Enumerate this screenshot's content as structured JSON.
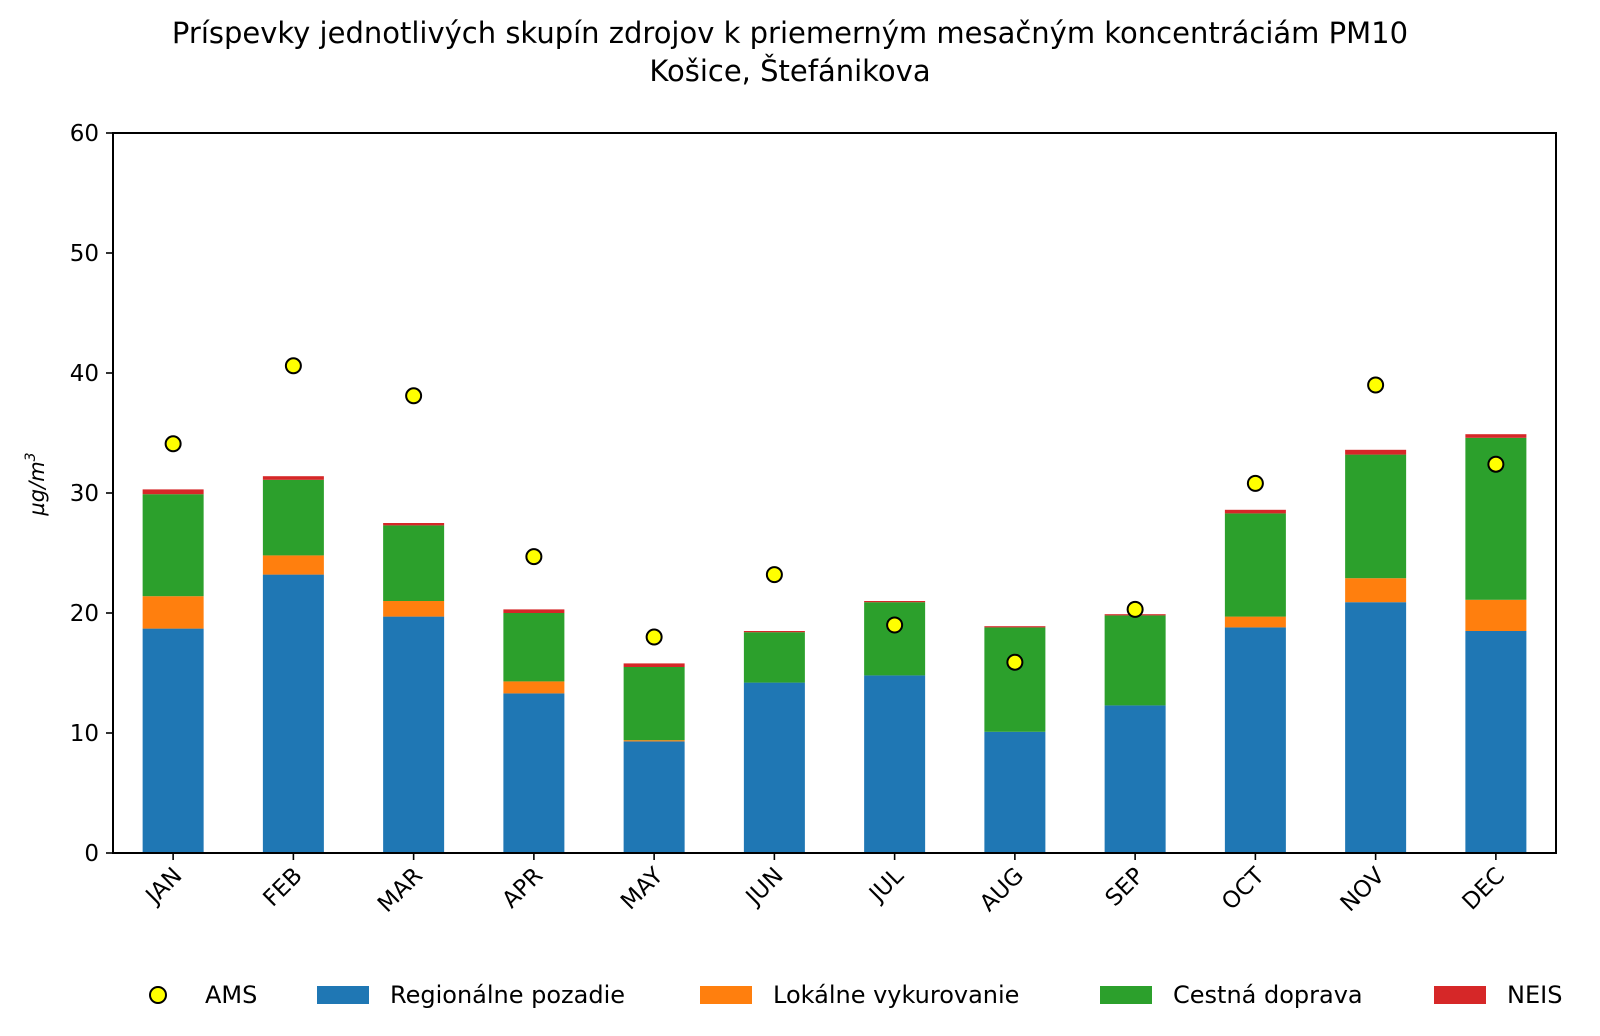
{
  "chart_data": {
    "type": "bar",
    "title": "Príspevky jednotlivých skupín zdrojov k priemerným mesačným koncentráciám PM10",
    "subtitle": "Košice, Štefánikova",
    "xlabel": "",
    "ylabel": "µg/m",
    "ylabel_sup": "3",
    "ylim": [
      0,
      60
    ],
    "yticks": [
      "0",
      "10",
      "20",
      "30",
      "40",
      "50",
      "60"
    ],
    "categories": [
      "JAN",
      "FEB",
      "MAR",
      "APR",
      "MAY",
      "JUN",
      "JUL",
      "AUG",
      "SEP",
      "OCT",
      "NOV",
      "DEC"
    ],
    "series": [
      {
        "name": "Regionálne pozadie",
        "color": "#1f77b4",
        "values": [
          18.7,
          23.2,
          19.7,
          13.3,
          9.3,
          14.2,
          14.8,
          10.1,
          12.3,
          18.8,
          20.9,
          18.5
        ]
      },
      {
        "name": "Lokálne vykurovanie",
        "color": "#ff7f0e",
        "values": [
          2.7,
          1.6,
          1.3,
          1.0,
          0.1,
          0.0,
          0.0,
          0.0,
          0.0,
          0.9,
          2.0,
          2.6
        ]
      },
      {
        "name": "Cestná doprava",
        "color": "#2ca02c",
        "values": [
          8.5,
          6.3,
          6.3,
          5.7,
          6.1,
          4.2,
          6.1,
          8.7,
          7.5,
          8.6,
          10.3,
          13.5
        ]
      },
      {
        "name": "NEIS",
        "color": "#d62728",
        "values": [
          0.4,
          0.3,
          0.2,
          0.3,
          0.3,
          0.1,
          0.1,
          0.1,
          0.1,
          0.3,
          0.4,
          0.3
        ]
      }
    ],
    "ams": {
      "name": "AMS",
      "color": "#ffff00",
      "values": [
        34.1,
        40.6,
        38.1,
        24.7,
        18.0,
        23.2,
        19.0,
        15.9,
        20.3,
        30.8,
        39.0,
        32.4
      ]
    },
    "legend_position": "bottom",
    "grid": false
  }
}
